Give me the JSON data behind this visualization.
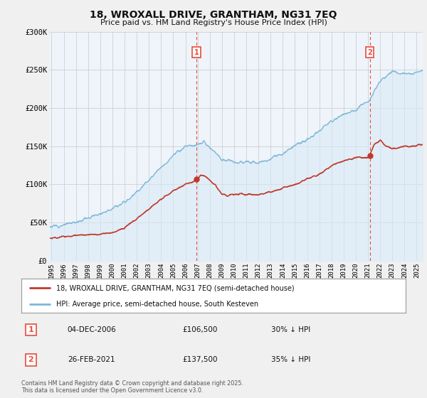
{
  "title": "18, WROXALL DRIVE, GRANTHAM, NG31 7EQ",
  "subtitle": "Price paid vs. HM Land Registry's House Price Index (HPI)",
  "legend_line1": "18, WROXALL DRIVE, GRANTHAM, NG31 7EQ (semi-detached house)",
  "legend_line2": "HPI: Average price, semi-detached house, South Kesteven",
  "footer": "Contains HM Land Registry data © Crown copyright and database right 2025.\nThis data is licensed under the Open Government Licence v3.0.",
  "transaction1_date": "04-DEC-2006",
  "transaction1_price": "£106,500",
  "transaction1_hpi": "30% ↓ HPI",
  "transaction2_date": "26-FEB-2021",
  "transaction2_price": "£137,500",
  "transaction2_hpi": "35% ↓ HPI",
  "vline1_x": 2006.92,
  "vline2_x": 2021.15,
  "ylim": [
    0,
    300000
  ],
  "xlim_start": 1994.8,
  "xlim_end": 2025.5,
  "hpi_color": "#7db8d8",
  "hpi_fill_color": "#d6eaf8",
  "price_color": "#c0392b",
  "vline_color": "#e74c3c",
  "background_color": "#f0f0f0",
  "plot_bg": "#eef4fa",
  "grid_color": "#d0d0d0",
  "dot1_x": 2006.92,
  "dot1_y": 106500,
  "dot2_x": 2021.15,
  "dot2_y": 137500
}
